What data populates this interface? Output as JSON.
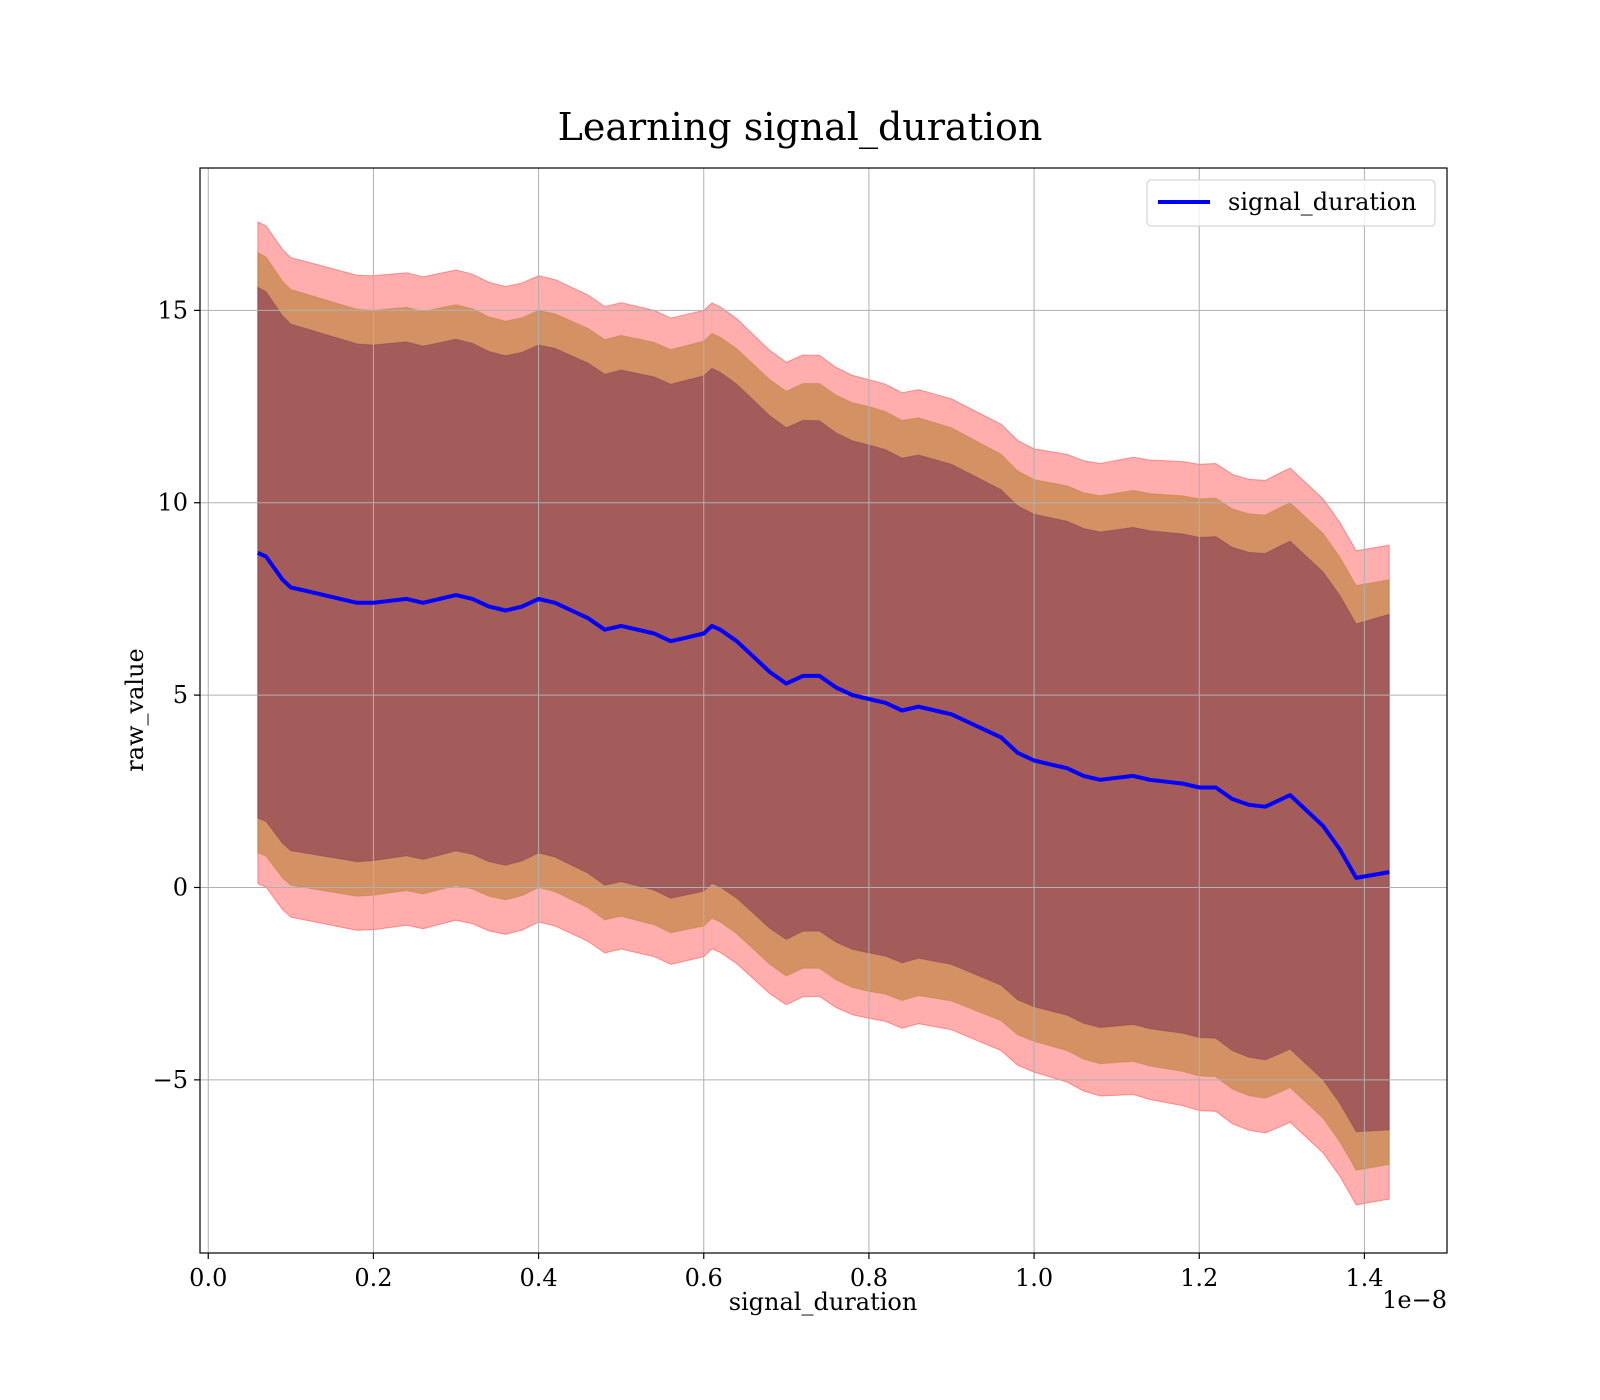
{
  "chart_data": {
    "type": "area",
    "title": "Learning signal_duration",
    "xlabel": "signal_duration",
    "ylabel": "raw_value",
    "x_offset_label": "1e−8",
    "xlim": [
      -0.01,
      1.5
    ],
    "ylim": [
      -9.5,
      18.7
    ],
    "x_ticks": [
      0.0,
      0.2,
      0.4,
      0.6,
      0.8,
      1.0,
      1.2,
      1.4
    ],
    "x_tick_labels": [
      "0.0",
      "0.2",
      "0.4",
      "0.6",
      "0.8",
      "1.0",
      "1.2",
      "1.4"
    ],
    "y_ticks": [
      -5,
      0,
      5,
      10,
      15
    ],
    "y_tick_labels": [
      "−5",
      "0",
      "5",
      "10",
      "15"
    ],
    "grid": true,
    "legend_position": "top-right",
    "colors": {
      "line": "#0000ff",
      "band_outer": "#ff0000",
      "band_middle": "#b07b28",
      "band_inner": "#7a2f52"
    },
    "series": [
      {
        "name": "signal_duration",
        "x": [
          0.06,
          0.07,
          0.08,
          0.09,
          0.1,
          0.12,
          0.14,
          0.16,
          0.18,
          0.2,
          0.22,
          0.24,
          0.26,
          0.28,
          0.3,
          0.32,
          0.34,
          0.36,
          0.38,
          0.4,
          0.42,
          0.44,
          0.46,
          0.48,
          0.5,
          0.52,
          0.54,
          0.56,
          0.58,
          0.6,
          0.61,
          0.62,
          0.64,
          0.66,
          0.68,
          0.7,
          0.72,
          0.74,
          0.76,
          0.78,
          0.8,
          0.82,
          0.84,
          0.86,
          0.88,
          0.9,
          0.92,
          0.94,
          0.96,
          0.98,
          1.0,
          1.02,
          1.04,
          1.06,
          1.08,
          1.1,
          1.12,
          1.14,
          1.16,
          1.18,
          1.2,
          1.22,
          1.24,
          1.26,
          1.28,
          1.3,
          1.31,
          1.33,
          1.35,
          1.37,
          1.39,
          1.43
        ],
        "y": [
          8.7,
          8.6,
          8.3,
          8.0,
          7.8,
          7.7,
          7.6,
          7.5,
          7.4,
          7.4,
          7.45,
          7.5,
          7.4,
          7.5,
          7.6,
          7.5,
          7.3,
          7.2,
          7.3,
          7.5,
          7.4,
          7.2,
          7.0,
          6.7,
          6.8,
          6.7,
          6.6,
          6.4,
          6.5,
          6.6,
          6.8,
          6.7,
          6.4,
          6.0,
          5.6,
          5.3,
          5.5,
          5.5,
          5.2,
          5.0,
          4.9,
          4.8,
          4.6,
          4.7,
          4.6,
          4.5,
          4.3,
          4.1,
          3.9,
          3.5,
          3.3,
          3.2,
          3.1,
          2.9,
          2.8,
          2.85,
          2.9,
          2.8,
          2.75,
          2.7,
          2.6,
          2.6,
          2.3,
          2.15,
          2.1,
          2.3,
          2.4,
          2.0,
          1.6,
          1.0,
          0.25,
          0.4
        ]
      }
    ],
    "band_half_widths_by_x": {
      "x": [
        0.06,
        0.2,
        0.4,
        0.6,
        0.8,
        1.0,
        1.2,
        1.3,
        1.39,
        1.43
      ],
      "inner": [
        6.9,
        6.7,
        6.6,
        6.7,
        6.6,
        6.4,
        6.5,
        6.6,
        6.6,
        6.7
      ],
      "middle": [
        7.8,
        7.6,
        7.5,
        7.6,
        7.6,
        7.3,
        7.5,
        7.6,
        7.6,
        7.6
      ],
      "outer": [
        8.6,
        8.5,
        8.4,
        8.4,
        8.3,
        8.1,
        8.4,
        8.5,
        8.5,
        8.5
      ]
    }
  }
}
